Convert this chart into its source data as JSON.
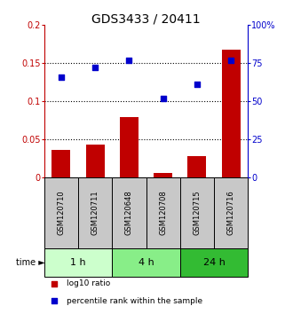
{
  "title": "GDS3433 / 20411",
  "categories": [
    "GSM120710",
    "GSM120711",
    "GSM120648",
    "GSM120708",
    "GSM120715",
    "GSM120716"
  ],
  "log10_ratio": [
    0.036,
    0.043,
    0.079,
    0.005,
    0.028,
    0.168
  ],
  "percentile_rank": [
    66,
    72,
    77,
    52,
    61,
    77
  ],
  "bar_color": "#c00000",
  "dot_color": "#0000cc",
  "left_ylim": [
    0,
    0.2
  ],
  "right_ylim": [
    0,
    100
  ],
  "left_yticks": [
    0,
    0.05,
    0.1,
    0.15,
    0.2
  ],
  "left_yticklabels": [
    "0",
    "0.05",
    "0.1",
    "0.15",
    "0.2"
  ],
  "right_yticks": [
    0,
    25,
    50,
    75,
    100
  ],
  "right_yticklabels": [
    "0",
    "25",
    "50",
    "75",
    "100%"
  ],
  "hlines": [
    0.05,
    0.1,
    0.15
  ],
  "time_groups": [
    {
      "label": "1 h",
      "indices": [
        0,
        1
      ],
      "color": "#ccffcc"
    },
    {
      "label": "4 h",
      "indices": [
        2,
        3
      ],
      "color": "#88ee88"
    },
    {
      "label": "24 h",
      "indices": [
        4,
        5
      ],
      "color": "#33bb33"
    }
  ],
  "legend_items": [
    {
      "label": "log10 ratio",
      "color": "#c00000",
      "marker": "s"
    },
    {
      "label": "percentile rank within the sample",
      "color": "#0000cc",
      "marker": "s"
    }
  ],
  "title_fontsize": 10,
  "tick_fontsize": 7,
  "cat_fontsize": 6,
  "time_fontsize": 8,
  "legend_fontsize": 6.5
}
